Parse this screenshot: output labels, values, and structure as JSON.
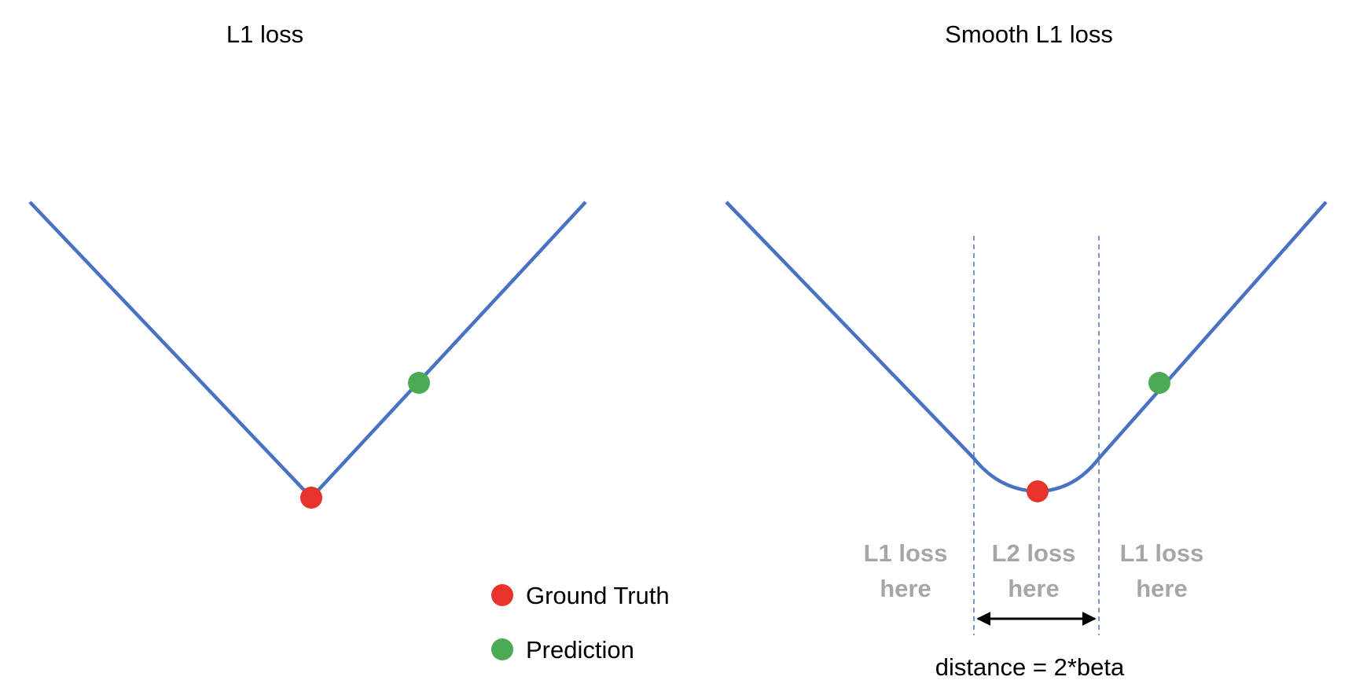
{
  "left_panel": {
    "title": "L1 loss"
  },
  "right_panel": {
    "title": "Smooth L1 loss",
    "region_left": {
      "line1": "L1 loss",
      "line2": "here"
    },
    "region_middle": {
      "line1": "L2 loss",
      "line2": "here"
    },
    "region_right": {
      "line1": "L1 loss",
      "line2": "here"
    },
    "distance_label": "distance = 2*beta"
  },
  "legend": {
    "items": [
      {
        "label": "Ground Truth",
        "color": "#e8332a"
      },
      {
        "label": "Prediction",
        "color": "#4caa55"
      }
    ]
  },
  "colors": {
    "curve": "#4a72c4",
    "guide": "#4a72c4",
    "ground_truth": "#e8332a",
    "prediction": "#4caa55",
    "region_text": "#a6a6a6"
  }
}
